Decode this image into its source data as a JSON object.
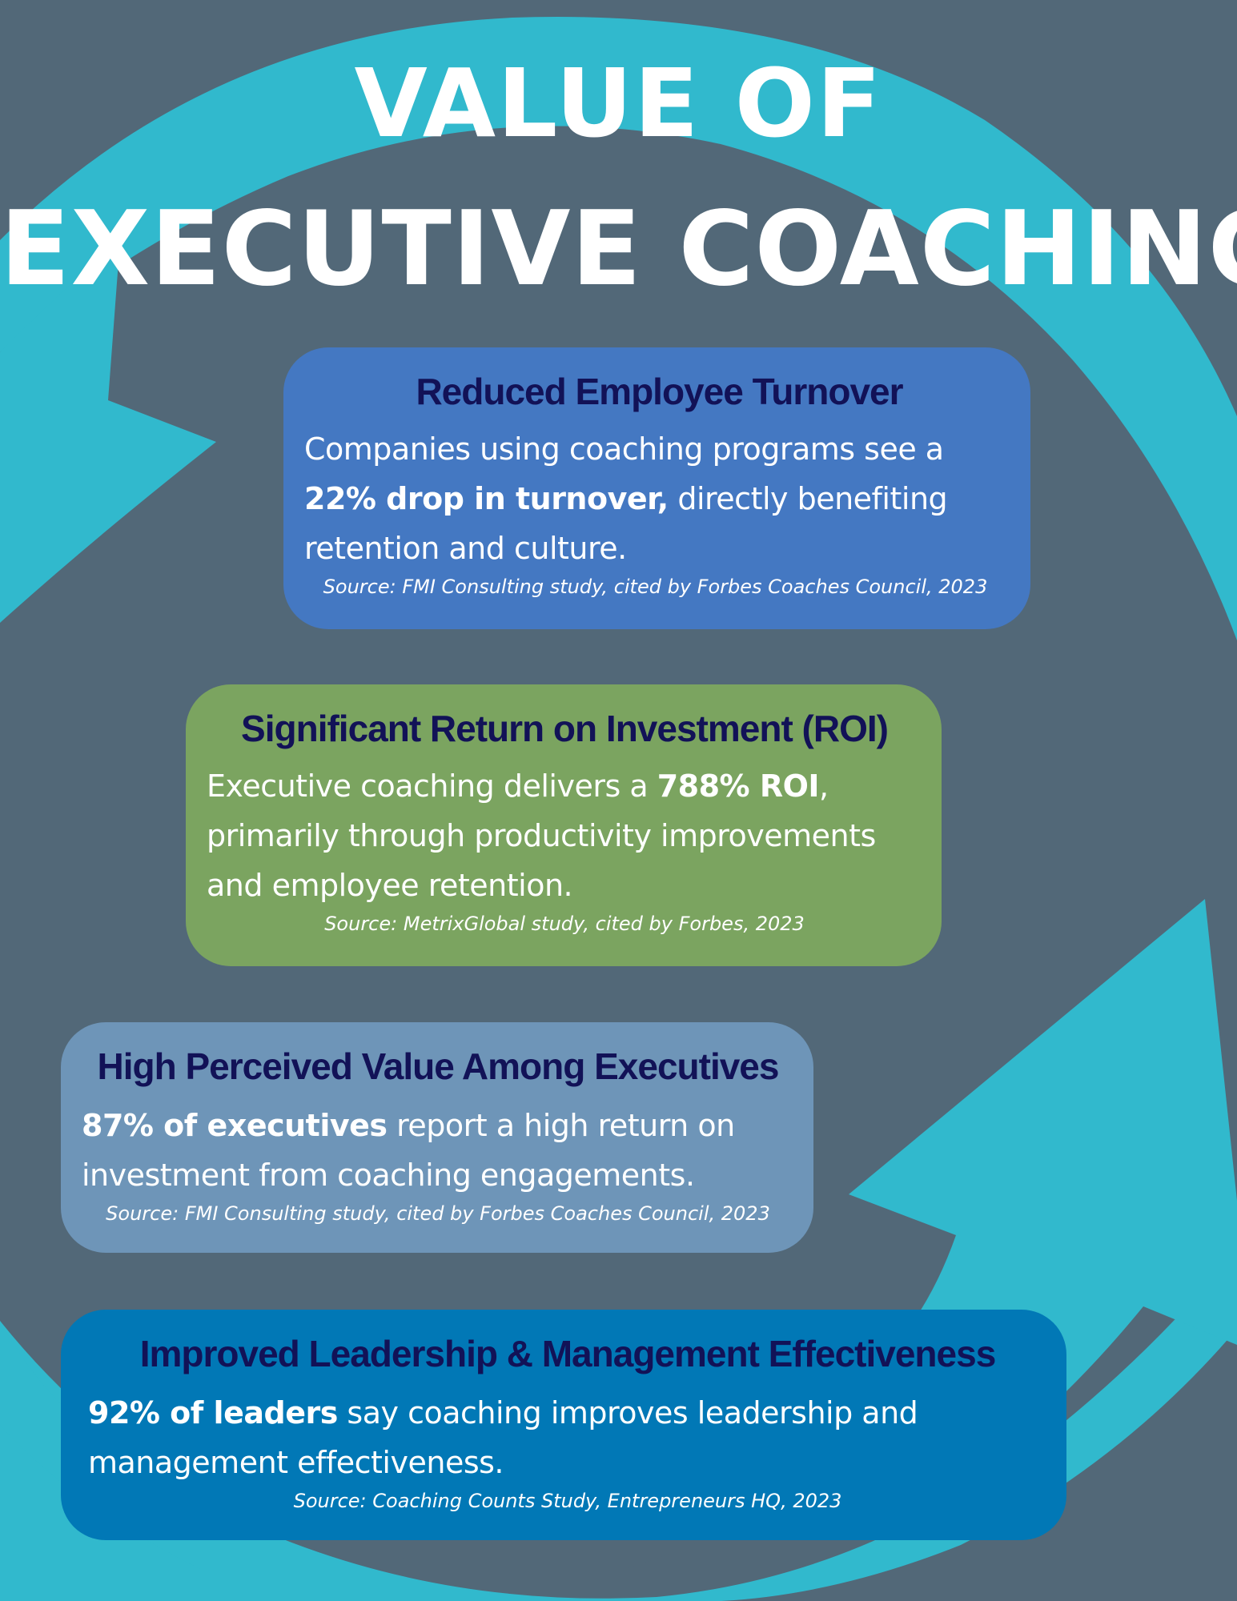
{
  "title": {
    "line1": "VALUE OF",
    "line2": "EXECUTIVE COACHING"
  },
  "colors": {
    "background": "#526878",
    "arrow": "#31b9cd",
    "heading_text": "#121257",
    "card_turnover": "#4478c2",
    "card_roi": "#7ba460",
    "card_perceived": "#6e95b8",
    "card_leadership": "#0178b6"
  },
  "cards": {
    "turnover": {
      "heading": "Reduced Employee Turnover",
      "body_pre": "Companies using coaching programs see a",
      "body_bold": "22% drop in turnover,",
      "body_post": "directly benefiting retention and culture.",
      "source": "Source: FMI Consulting study, cited by Forbes Coaches Council, 2023"
    },
    "roi": {
      "heading": "Significant Return on Investment (ROI)",
      "body_pre": "Executive coaching delivers a",
      "body_bold": "788% ROI",
      "body_post": ", primarily through productivity improvements and employee retention.",
      "source": "Source: MetrixGlobal study, cited by Forbes, 2023"
    },
    "perceived": {
      "heading": "High Perceived Value Among Executives",
      "body_bold": "87% of executives",
      "body_post": "report a high return on investment from coaching engagements.",
      "source": "Source: FMI Consulting study, cited by Forbes Coaches Council, 2023"
    },
    "leadership": {
      "heading": "Improved Leadership & Management Effectiveness",
      "body_bold": "92% of leaders",
      "body_post": "say coaching improves leadership and management effectiveness.",
      "source": "Source: Coaching Counts Study, Entrepreneurs HQ, 2023"
    }
  }
}
